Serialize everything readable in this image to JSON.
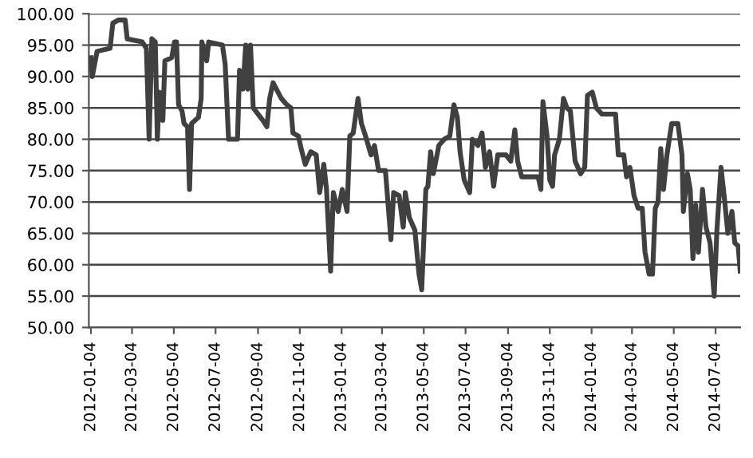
{
  "chart_data": {
    "type": "line",
    "xlim": [
      "2012-01-01",
      "2014-08-09"
    ],
    "xticks": [
      {
        "value": "2012-01-04",
        "label": "2012-01-04"
      },
      {
        "value": "2012-03-04",
        "label": "2012-03-04"
      },
      {
        "value": "2012-05-04",
        "label": "2012-05-04"
      },
      {
        "value": "2012-07-04",
        "label": "2012-07-04"
      },
      {
        "value": "2012-09-04",
        "label": "2012-09-04"
      },
      {
        "value": "2012-11-04",
        "label": "2012-11-04"
      },
      {
        "value": "2013-01-04",
        "label": "2013-01-04"
      },
      {
        "value": "2013-03-04",
        "label": "2013-03-04"
      },
      {
        "value": "2013-05-04",
        "label": "2013-05-04"
      },
      {
        "value": "2013-07-04",
        "label": "2013-07-04"
      },
      {
        "value": "2013-09-04",
        "label": "2013-09-04"
      },
      {
        "value": "2013-11-04",
        "label": "2013-11-04"
      },
      {
        "value": "2014-01-04",
        "label": "2014-01-04"
      },
      {
        "value": "2014-03-04",
        "label": "2014-03-04"
      },
      {
        "value": "2014-05-04",
        "label": "2014-05-04"
      },
      {
        "value": "2014-07-04",
        "label": "2014-07-04"
      }
    ],
    "ylim": [
      50,
      100
    ],
    "yticks": [
      {
        "value": 50,
        "label": "50.00"
      },
      {
        "value": 55,
        "label": "55.00"
      },
      {
        "value": 60,
        "label": "60.00"
      },
      {
        "value": 65,
        "label": "65.00"
      },
      {
        "value": 70,
        "label": "70.00"
      },
      {
        "value": 75,
        "label": "75.00"
      },
      {
        "value": 80,
        "label": "80.00"
      },
      {
        "value": 85,
        "label": "85.00"
      },
      {
        "value": 90,
        "label": "90.00"
      },
      {
        "value": 95,
        "label": "95.00"
      },
      {
        "value": 100,
        "label": "100.00"
      }
    ],
    "grid": "y",
    "marker": "none",
    "line_style": "solid",
    "series": [
      {
        "color": "#404040",
        "x": [
          "2012-01-04",
          "2012-01-06",
          "2012-01-13",
          "2012-02-01",
          "2012-02-05",
          "2012-02-13",
          "2012-02-23",
          "2012-02-26",
          "2012-03-19",
          "2012-03-25",
          "2012-03-29",
          "2012-04-02",
          "2012-04-07",
          "2012-04-10",
          "2012-04-13",
          "2012-04-18",
          "2012-04-21",
          "2012-05-01",
          "2012-05-05",
          "2012-05-08",
          "2012-05-11",
          "2012-05-16",
          "2012-05-19",
          "2012-05-24",
          "2012-05-27",
          "2012-05-30",
          "2012-06-09",
          "2012-06-13",
          "2012-06-14",
          "2012-06-21",
          "2012-06-24",
          "2012-07-14",
          "2012-07-18",
          "2012-07-23",
          "2012-08-05",
          "2012-08-08",
          "2012-08-13",
          "2012-08-17",
          "2012-08-20",
          "2012-08-24",
          "2012-08-28",
          "2012-09-11",
          "2012-09-17",
          "2012-09-21",
          "2012-09-26",
          "2012-10-08",
          "2012-10-16",
          "2012-10-22",
          "2012-10-25",
          "2012-11-02",
          "2012-11-06",
          "2012-11-12",
          "2012-11-20",
          "2012-11-28",
          "2012-12-03",
          "2012-12-09",
          "2012-12-13",
          "2012-12-19",
          "2012-12-23",
          "2012-12-30",
          "2013-01-05",
          "2013-01-12",
          "2013-01-16",
          "2013-01-21",
          "2013-01-28",
          "2013-02-02",
          "2013-02-08",
          "2013-02-16",
          "2013-02-21",
          "2013-02-27",
          "2013-03-09",
          "2013-03-17",
          "2013-03-21",
          "2013-03-29",
          "2013-04-04",
          "2013-04-07",
          "2013-04-13",
          "2013-04-21",
          "2013-04-27",
          "2013-05-01",
          "2013-05-07",
          "2013-05-10",
          "2013-05-14",
          "2013-05-18",
          "2013-05-26",
          "2013-06-03",
          "2013-06-11",
          "2013-06-17",
          "2013-06-22",
          "2013-06-26",
          "2013-07-02",
          "2013-07-10",
          "2013-07-14",
          "2013-07-22",
          "2013-07-28",
          "2013-08-02",
          "2013-08-08",
          "2013-08-14",
          "2013-08-20",
          "2013-09-01",
          "2013-09-08",
          "2013-09-14",
          "2013-09-18",
          "2013-09-24",
          "2013-10-02",
          "2013-10-18",
          "2013-10-22",
          "2013-10-25",
          "2013-10-31",
          "2013-11-04",
          "2013-11-08",
          "2013-11-11",
          "2013-11-18",
          "2013-11-24",
          "2013-11-29",
          "2013-12-04",
          "2013-12-11",
          "2013-12-19",
          "2013-12-25",
          "2013-12-29",
          "2014-01-05",
          "2014-01-11",
          "2014-01-19",
          "2014-02-08",
          "2014-02-12",
          "2014-02-20",
          "2014-02-24",
          "2014-03-01",
          "2014-03-07",
          "2014-03-13",
          "2014-03-19",
          "2014-03-23",
          "2014-03-29",
          "2014-04-03",
          "2014-04-07",
          "2014-04-11",
          "2014-04-15",
          "2014-04-19",
          "2014-04-24",
          "2014-05-01",
          "2014-05-10",
          "2014-05-16",
          "2014-05-18",
          "2014-05-24",
          "2014-05-28",
          "2014-06-01",
          "2014-06-05",
          "2014-06-09",
          "2014-06-15",
          "2014-06-20",
          "2014-06-26",
          "2014-07-02",
          "2014-07-06",
          "2014-07-12",
          "2014-07-17",
          "2014-07-22",
          "2014-07-28",
          "2014-08-01",
          "2014-08-06",
          "2014-08-09"
        ],
        "values": [
          93,
          90,
          94,
          94.5,
          98.5,
          99,
          99,
          96,
          95.5,
          94.5,
          80,
          96,
          95.5,
          80,
          87.5,
          83,
          92.5,
          93,
          95.5,
          95.5,
          85.5,
          84.5,
          82.5,
          82,
          72,
          82.5,
          83.5,
          86.5,
          95.5,
          92.5,
          95.5,
          95,
          92,
          80,
          80,
          91,
          88,
          95,
          88,
          95,
          85,
          83,
          82,
          86.5,
          89,
          86.5,
          85.5,
          85,
          81,
          80.5,
          78.5,
          76,
          78,
          77.5,
          71.5,
          76,
          72,
          59,
          71.5,
          68.5,
          72,
          68.5,
          80.5,
          81,
          86.5,
          82.5,
          80.5,
          77.5,
          79,
          75,
          75,
          64,
          71.5,
          71,
          66,
          71.5,
          67.5,
          65.5,
          58.5,
          56,
          72,
          72.5,
          78,
          74.5,
          79,
          80,
          80.5,
          85.5,
          83.5,
          78,
          73.5,
          71.5,
          80,
          79,
          81,
          75.5,
          78,
          72.5,
          77.5,
          77.5,
          76.5,
          81.5,
          76.5,
          74,
          74,
          74,
          72,
          86,
          80.5,
          73.5,
          72.5,
          77.5,
          80,
          86.5,
          85,
          84.5,
          76.5,
          74.5,
          75.5,
          87,
          87.5,
          85,
          84,
          84,
          77.5,
          77.5,
          74,
          75.5,
          71,
          69,
          69,
          62,
          58.5,
          58.5,
          69,
          70,
          78.5,
          72,
          77.5,
          82.5,
          82.5,
          77.5,
          68.5,
          74.5,
          72,
          61,
          69.5,
          62,
          72,
          66,
          63.5,
          55,
          65.5,
          75.5,
          70.5,
          65,
          68.5,
          63.5,
          63,
          59
        ]
      }
    ]
  }
}
